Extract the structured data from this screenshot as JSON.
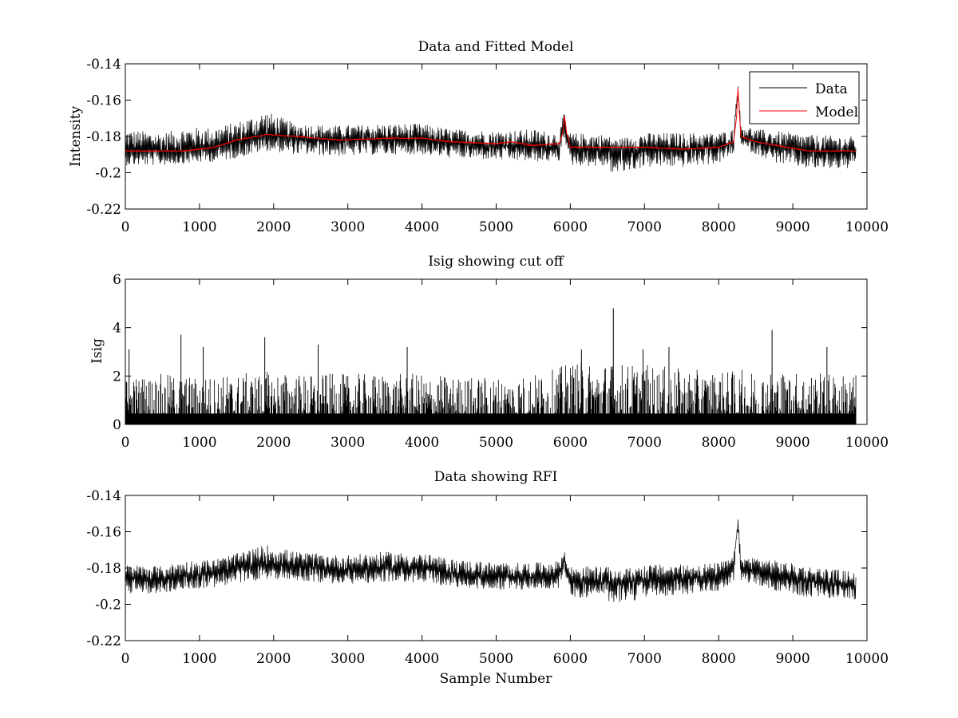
{
  "colors": {
    "data": "#000000",
    "model": "#ff0000",
    "axes": "#000000",
    "background": "#ffffff"
  },
  "chart_data": [
    {
      "type": "line",
      "title": "Data and Fitted Model",
      "xlabel": "",
      "ylabel": "Intensity",
      "xlim": [
        0,
        10000
      ],
      "ylim": [
        -0.22,
        -0.14
      ],
      "xticks": [
        0,
        1000,
        2000,
        3000,
        4000,
        5000,
        6000,
        7000,
        8000,
        9000,
        10000
      ],
      "yticks": [
        -0.22,
        -0.2,
        -0.18,
        -0.16,
        -0.14
      ],
      "ytick_labels": [
        "-0.22",
        "-0.2",
        "-0.18",
        "-0.16",
        "-0.14"
      ],
      "legend": {
        "position": "top-right",
        "entries": [
          "Data",
          "Model"
        ]
      },
      "series": [
        {
          "name": "Data",
          "color": "#000000",
          "x": [
            0,
            500,
            800,
            1200,
            1500,
            1900,
            2300,
            2900,
            3500,
            4000,
            4400,
            5000,
            5500,
            5850,
            5920,
            5950,
            6000,
            6500,
            6580,
            7000,
            7500,
            8000,
            8200,
            8260,
            8300,
            8500,
            8800,
            9200,
            9850
          ],
          "center": [
            -0.188,
            -0.188,
            -0.188,
            -0.186,
            -0.183,
            -0.18,
            -0.181,
            -0.182,
            -0.182,
            -0.182,
            -0.184,
            -0.185,
            -0.186,
            -0.186,
            -0.169,
            -0.182,
            -0.187,
            -0.187,
            -0.187,
            -0.187,
            -0.187,
            -0.186,
            -0.183,
            -0.152,
            -0.18,
            -0.183,
            -0.186,
            -0.188,
            -0.189
          ],
          "max": [
            -0.176,
            -0.178,
            -0.175,
            -0.175,
            -0.172,
            -0.166,
            -0.173,
            -0.174,
            -0.173,
            -0.173,
            -0.176,
            -0.177,
            -0.176,
            -0.178,
            -0.166,
            -0.176,
            -0.178,
            -0.179,
            -0.182,
            -0.178,
            -0.178,
            -0.178,
            -0.176,
            -0.15,
            -0.173,
            -0.176,
            -0.177,
            -0.179,
            -0.18
          ],
          "min": [
            -0.196,
            -0.196,
            -0.195,
            -0.194,
            -0.192,
            -0.188,
            -0.19,
            -0.191,
            -0.19,
            -0.19,
            -0.192,
            -0.193,
            -0.194,
            -0.194,
            -0.178,
            -0.188,
            -0.196,
            -0.197,
            -0.202,
            -0.197,
            -0.197,
            -0.195,
            -0.19,
            -0.158,
            -0.186,
            -0.19,
            -0.195,
            -0.198,
            -0.198
          ]
        },
        {
          "name": "Model",
          "color": "#ff0000",
          "x": [
            0,
            500,
            800,
            1200,
            1500,
            1900,
            2300,
            2900,
            3500,
            4000,
            4400,
            5000,
            5200,
            5500,
            5850,
            5900,
            5920,
            5950,
            6000,
            6500,
            7000,
            7500,
            8000,
            8200,
            8240,
            8260,
            8280,
            8300,
            8500,
            8800,
            9200,
            9850
          ],
          "y": [
            -0.188,
            -0.188,
            -0.188,
            -0.186,
            -0.182,
            -0.179,
            -0.18,
            -0.182,
            -0.181,
            -0.181,
            -0.183,
            -0.184,
            -0.183,
            -0.185,
            -0.184,
            -0.178,
            -0.168,
            -0.178,
            -0.186,
            -0.186,
            -0.186,
            -0.187,
            -0.186,
            -0.183,
            -0.17,
            -0.153,
            -0.168,
            -0.18,
            -0.183,
            -0.185,
            -0.188,
            -0.188
          ]
        }
      ]
    },
    {
      "type": "line",
      "title": "Isig showing cut off",
      "xlabel": "",
      "ylabel": "Isig",
      "xlim": [
        0,
        10000
      ],
      "ylim": [
        0,
        6
      ],
      "xticks": [
        0,
        1000,
        2000,
        3000,
        4000,
        5000,
        6000,
        7000,
        8000,
        9000,
        10000
      ],
      "yticks": [
        0,
        2,
        4,
        6
      ],
      "ytick_labels": [
        "0",
        "2",
        "4",
        "6"
      ],
      "series": [
        {
          "name": "Isig",
          "color": "#000000",
          "x": [
            0,
            500,
            1000,
            1500,
            2000,
            2500,
            3000,
            3500,
            4000,
            4500,
            5000,
            5500,
            5800,
            6000,
            6500,
            7000,
            7500,
            8000,
            8500,
            9000,
            9850
          ],
          "typical_max": [
            2.0,
            2.1,
            2.0,
            2.1,
            2.2,
            2.1,
            2.1,
            2.1,
            2.1,
            2.0,
            2.0,
            2.1,
            2.3,
            2.6,
            2.6,
            2.5,
            2.3,
            2.2,
            2.3,
            2.2,
            2.1
          ],
          "spikes": [
            {
              "x": 50,
              "y": 3.1
            },
            {
              "x": 750,
              "y": 3.7
            },
            {
              "x": 1050,
              "y": 3.2
            },
            {
              "x": 1880,
              "y": 3.6
            },
            {
              "x": 2600,
              "y": 3.3
            },
            {
              "x": 3800,
              "y": 3.2
            },
            {
              "x": 6150,
              "y": 3.1
            },
            {
              "x": 6580,
              "y": 4.8
            },
            {
              "x": 6980,
              "y": 3.1
            },
            {
              "x": 7330,
              "y": 3.2
            },
            {
              "x": 8720,
              "y": 3.9
            },
            {
              "x": 9460,
              "y": 3.2
            }
          ]
        }
      ]
    },
    {
      "type": "line",
      "title": "Data showing RFI",
      "xlabel": "Sample Number",
      "ylabel": "",
      "xlim": [
        0,
        10000
      ],
      "ylim": [
        -0.22,
        -0.14
      ],
      "xticks": [
        0,
        1000,
        2000,
        3000,
        4000,
        5000,
        6000,
        7000,
        8000,
        9000,
        10000
      ],
      "yticks": [
        -0.22,
        -0.2,
        -0.18,
        -0.16,
        -0.14
      ],
      "ytick_labels": [
        "-0.22",
        "-0.2",
        "-0.18",
        "-0.16",
        "-0.14"
      ],
      "series": [
        {
          "name": "Data",
          "color": "#000000",
          "x": [
            0,
            500,
            800,
            1200,
            1500,
            1900,
            2300,
            2900,
            3500,
            4000,
            4400,
            5000,
            5500,
            5850,
            5920,
            5950,
            6000,
            6500,
            6580,
            7000,
            7500,
            8000,
            8200,
            8260,
            8300,
            8500,
            8800,
            9200,
            9850
          ],
          "center": [
            -0.186,
            -0.186,
            -0.184,
            -0.183,
            -0.18,
            -0.178,
            -0.179,
            -0.181,
            -0.18,
            -0.18,
            -0.183,
            -0.185,
            -0.185,
            -0.183,
            -0.173,
            -0.182,
            -0.187,
            -0.188,
            -0.188,
            -0.187,
            -0.186,
            -0.185,
            -0.18,
            -0.154,
            -0.18,
            -0.181,
            -0.184,
            -0.187,
            -0.19
          ],
          "max": [
            -0.178,
            -0.179,
            -0.176,
            -0.175,
            -0.172,
            -0.167,
            -0.171,
            -0.173,
            -0.171,
            -0.172,
            -0.175,
            -0.177,
            -0.177,
            -0.176,
            -0.17,
            -0.177,
            -0.179,
            -0.179,
            -0.182,
            -0.178,
            -0.178,
            -0.177,
            -0.174,
            -0.151,
            -0.174,
            -0.174,
            -0.176,
            -0.179,
            -0.182
          ],
          "min": [
            -0.194,
            -0.194,
            -0.192,
            -0.191,
            -0.189,
            -0.186,
            -0.187,
            -0.189,
            -0.188,
            -0.188,
            -0.191,
            -0.192,
            -0.192,
            -0.191,
            -0.18,
            -0.188,
            -0.196,
            -0.197,
            -0.202,
            -0.196,
            -0.195,
            -0.193,
            -0.188,
            -0.158,
            -0.187,
            -0.189,
            -0.193,
            -0.196,
            -0.198
          ]
        }
      ]
    }
  ]
}
